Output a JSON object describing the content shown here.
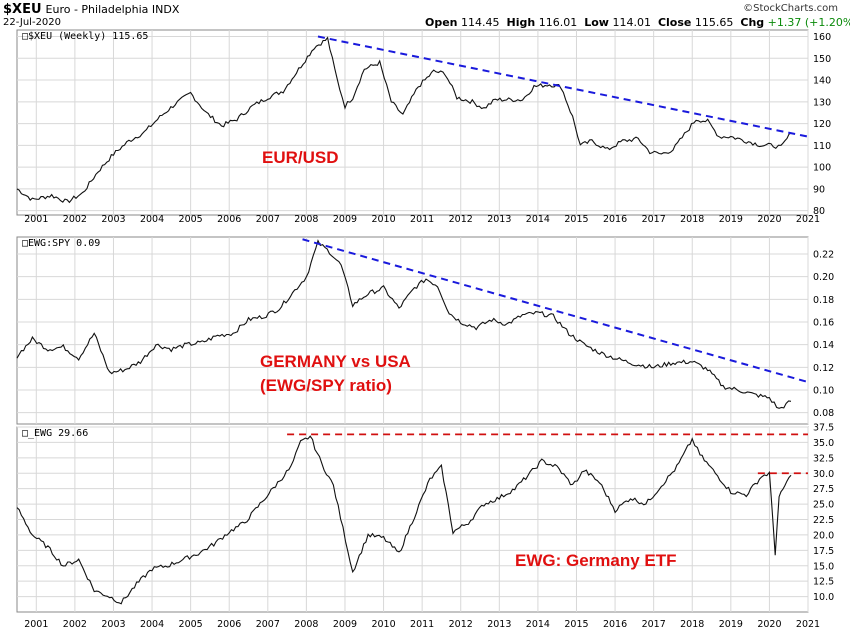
{
  "header": {
    "symbol": "$XEU",
    "name": "Euro - Philadelphia INDX",
    "date": "22-Jul-2020",
    "open_label": "Open",
    "open": "114.45",
    "high_label": "High",
    "high": "116.01",
    "low_label": "Low",
    "low": "114.01",
    "close_label": "Close",
    "close": "115.65",
    "chg_label": "Chg",
    "chg": "+1.37 (+1.20%)",
    "brand": "©StockCharts.com"
  },
  "chart_data": [
    {
      "type": "line",
      "legend": "$XEU (Weekly) 115.65",
      "annotation": "EUR/USD",
      "ylim": [
        78,
        163
      ],
      "yticks": [
        80,
        90,
        100,
        110,
        120,
        130,
        140,
        150,
        160
      ],
      "xticks": [
        "2001",
        "2002",
        "2003",
        "2004",
        "2005",
        "2006",
        "2007",
        "2008",
        "2009",
        "2010",
        "2011",
        "2012",
        "2013",
        "2014",
        "2015",
        "2016",
        "2017",
        "2018",
        "2019",
        "2020",
        "2021"
      ],
      "x": [
        2000.5,
        2000.9,
        2001.4,
        2001.8,
        2002.2,
        2002.6,
        2003.0,
        2003.4,
        2003.8,
        2004.2,
        2004.6,
        2005.0,
        2005.4,
        2005.8,
        2006.2,
        2006.6,
        2007.0,
        2007.4,
        2007.8,
        2008.2,
        2008.55,
        2008.8,
        2009.0,
        2009.2,
        2009.5,
        2009.9,
        2010.2,
        2010.5,
        2010.9,
        2011.3,
        2011.6,
        2011.9,
        2012.3,
        2012.6,
        2012.9,
        2013.3,
        2013.6,
        2013.9,
        2014.3,
        2014.6,
        2014.9,
        2015.1,
        2015.4,
        2015.8,
        2016.2,
        2016.6,
        2016.9,
        2017.2,
        2017.5,
        2017.8,
        2018.1,
        2018.4,
        2018.7,
        2019.0,
        2019.4,
        2019.8,
        2020.1,
        2020.3,
        2020.56
      ],
      "y": [
        90,
        85,
        87,
        84,
        88,
        98,
        106,
        112,
        116,
        123,
        129,
        134,
        125,
        119,
        122,
        128,
        132,
        135,
        145,
        155,
        159,
        140,
        128,
        132,
        145,
        148,
        130,
        124,
        137,
        144,
        143,
        132,
        130,
        127,
        131,
        131,
        131,
        137,
        138,
        137,
        123,
        110,
        112,
        108,
        112,
        113,
        107,
        106,
        108,
        115,
        122,
        121,
        114,
        114,
        112,
        110,
        110,
        109,
        115.65
      ],
      "trendline": {
        "x": [
          2008.3,
          2021.0
        ],
        "y": [
          160,
          114
        ]
      }
    },
    {
      "type": "line",
      "legend": "EWG:SPY 0.09",
      "annotation": [
        "GERMANY vs USA",
        "(EWG/SPY ratio)"
      ],
      "ylim": [
        0.07,
        0.235
      ],
      "yticks": [
        0.08,
        0.1,
        0.12,
        0.14,
        0.16,
        0.18,
        0.2,
        0.22
      ],
      "x": [
        2000.5,
        2000.9,
        2001.3,
        2001.7,
        2002.1,
        2002.5,
        2002.9,
        2003.3,
        2003.7,
        2004.1,
        2004.5,
        2004.9,
        2005.3,
        2005.7,
        2006.1,
        2006.5,
        2006.9,
        2007.3,
        2007.7,
        2008.0,
        2008.3,
        2008.6,
        2008.9,
        2009.2,
        2009.6,
        2010.0,
        2010.4,
        2010.8,
        2011.1,
        2011.4,
        2011.7,
        2012.0,
        2012.4,
        2012.8,
        2013.2,
        2013.6,
        2014.0,
        2014.4,
        2014.8,
        2015.2,
        2015.6,
        2016.0,
        2016.5,
        2017.0,
        2017.5,
        2018.0,
        2018.4,
        2018.8,
        2019.2,
        2019.6,
        2020.0,
        2020.25,
        2020.56
      ],
      "y": [
        0.13,
        0.145,
        0.136,
        0.138,
        0.128,
        0.15,
        0.115,
        0.118,
        0.125,
        0.14,
        0.136,
        0.14,
        0.142,
        0.148,
        0.15,
        0.162,
        0.165,
        0.172,
        0.188,
        0.2,
        0.23,
        0.222,
        0.21,
        0.175,
        0.185,
        0.19,
        0.172,
        0.19,
        0.198,
        0.192,
        0.168,
        0.16,
        0.155,
        0.162,
        0.158,
        0.166,
        0.168,
        0.165,
        0.15,
        0.14,
        0.133,
        0.128,
        0.123,
        0.12,
        0.124,
        0.125,
        0.118,
        0.103,
        0.1,
        0.096,
        0.093,
        0.083,
        0.09
      ],
      "trendline": {
        "x": [
          2007.9,
          2021.0
        ],
        "y": [
          0.233,
          0.107
        ]
      }
    },
    {
      "type": "line",
      "legend": "_EWG 29.66",
      "annotation": "EWG: Germany ETF",
      "ylim": [
        7.5,
        37.5
      ],
      "yticks": [
        10.0,
        12.5,
        15.0,
        17.5,
        20.0,
        22.5,
        25.0,
        27.5,
        30.0,
        32.5,
        35.0,
        37.5
      ],
      "x": [
        2000.5,
        2000.9,
        2001.3,
        2001.7,
        2002.1,
        2002.5,
        2002.9,
        2003.2,
        2003.6,
        2004.0,
        2004.4,
        2004.8,
        2005.2,
        2005.6,
        2006.0,
        2006.4,
        2006.8,
        2007.2,
        2007.6,
        2007.85,
        2008.1,
        2008.4,
        2008.7,
        2008.95,
        2009.2,
        2009.6,
        2010.0,
        2010.4,
        2010.8,
        2011.2,
        2011.5,
        2011.8,
        2012.2,
        2012.6,
        2013.0,
        2013.4,
        2013.8,
        2014.1,
        2014.5,
        2014.9,
        2015.2,
        2015.6,
        2016.0,
        2016.4,
        2016.8,
        2017.2,
        2017.6,
        2018.0,
        2018.2,
        2018.6,
        2019.0,
        2019.4,
        2019.8,
        2020.0,
        2020.15,
        2020.25,
        2020.4,
        2020.56
      ],
      "y": [
        24.5,
        20.0,
        18.0,
        15.0,
        16.0,
        11.0,
        10.0,
        9.0,
        12.0,
        14.5,
        15.0,
        16.0,
        17.0,
        18.5,
        20.5,
        22.0,
        25.0,
        28.0,
        31.0,
        35.0,
        36.0,
        31.5,
        28.0,
        21.0,
        14.0,
        20.0,
        19.5,
        17.0,
        23.0,
        29.0,
        31.0,
        20.5,
        22.0,
        25.0,
        26.0,
        27.5,
        30.0,
        32.0,
        31.0,
        28.0,
        30.5,
        28.5,
        24.0,
        26.0,
        25.0,
        28.0,
        31.0,
        35.5,
        33.0,
        30.0,
        27.0,
        26.5,
        29.5,
        30.0,
        17.0,
        26.0,
        28.0,
        29.66
      ],
      "resistance_long": {
        "x": [
          2007.5,
          2021.0
        ],
        "y": 36.3
      },
      "resistance_short": {
        "x": [
          2019.7,
          2021.0
        ],
        "y": 30.0
      }
    }
  ]
}
